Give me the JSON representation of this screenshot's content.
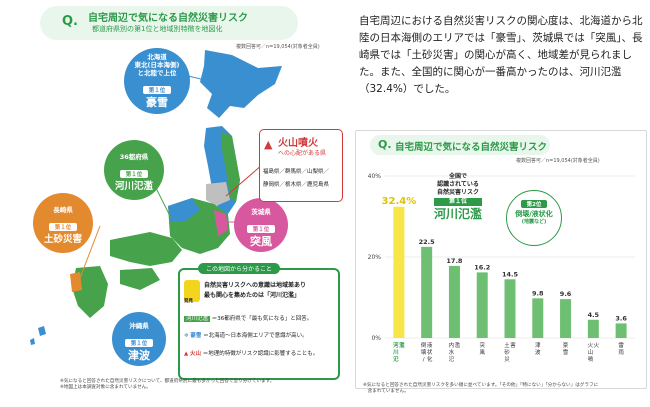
{
  "map": {
    "title": "自宅周辺で気になる自然災害リスク",
    "subtitle": "都道府県別の第1位と地域別特徴を地図化",
    "qmark": "Q.",
    "note": "複数回答可／n=19,054(対象者全員)",
    "rank_label": "第１位",
    "bubbles": [
      {
        "region1": "北海道",
        "region2": "東北(日本海側)",
        "region3": "と北陸で上位",
        "risk": "豪雪",
        "color": "#3a8fd0"
      },
      {
        "region1": "36都府県",
        "risk": "河川氾濫",
        "color": "#47a34b"
      },
      {
        "region1": "長崎県",
        "risk": "土砂災害",
        "color": "#e48a2e"
      },
      {
        "region1": "茨城県",
        "risk": "突風",
        "color": "#d8589f"
      },
      {
        "region1": "沖縄県",
        "risk": "津波",
        "color": "#3a8fd0"
      }
    ],
    "volcano": {
      "title": "火山噴火",
      "subtitle": "への心配がある県",
      "prefs1": "福島県／群馬県／山梨県／",
      "prefs2": "静岡県／栃木県／鹿児島県"
    },
    "legend": {
      "title": "この地図から分かること",
      "badge": "発見",
      "finding1": "自然災害リスクへの意識は地域差あり",
      "finding2": "最も関心を集めたのは「河川氾濫」",
      "item_river_label": "河川氾濫",
      "item_river": "＝36都府県で「最も気になる」と回答。",
      "item_snow_label": "豪雪",
      "item_snow": "＝北海道〜日本海側エリアで意識が高い。",
      "item_volcano_label": "火山",
      "item_volcano": "＝地理的特徴がリスク認識に影響することも。"
    },
    "footnote1": "※気になると回答された自然災害リスクについて、都道府県別に最も多かった回答で塗り分けています。",
    "footnote2": "※地図上は本調査対象に含まれていません。"
  },
  "description": "自宅周辺における自然災害リスクの関心度は、北海道から北陸の日本海側のエリアでは「豪雪」、茨城県では「突風」、長崎県では「土砂災害」の関心が高く、地域差が見られました。また、全国的に関心が一番高かったのは、河川氾濫（32.4%）でした。",
  "chart": {
    "qmark": "Q.",
    "title": "自宅周辺で気になる自然災害リスク",
    "note": "複数回答可／n=19,054(対象者全員)",
    "footnote1": "※気になると回答された自然災害リスクを多い順に並べています。「その他」「特にない」「分からない」はグラフに",
    "footnote2": "　含まれていません。",
    "callout1_line1": "全国で",
    "callout1_line2": "認識されている",
    "callout1_line3": "自然災害リスク",
    "callout1_rank": "第１位",
    "callout1_main": "河川氾濫",
    "callout2_rank": "第2位",
    "callout2_main": "倒壊/液状化",
    "callout2_sub": "(地震など)"
  },
  "chart_data": {
    "type": "bar",
    "categories": [
      "河川氾濫",
      "倒壊/液状化(地震など)",
      "内水氾濫",
      "突風",
      "土砂災害",
      "津波",
      "豪雪",
      "火山噴火",
      "雷雨"
    ],
    "values": [
      32.4,
      22.5,
      17.8,
      16.2,
      14.5,
      9.8,
      9.6,
      4.5,
      3.6
    ],
    "value_labels": [
      "32.4%",
      "22.5",
      "17.8",
      "16.2",
      "14.5",
      "9.8",
      "9.6",
      "4.5",
      "3.6"
    ],
    "ylim": [
      0,
      40
    ],
    "yticks": [
      "0%",
      "20%",
      "40%"
    ],
    "colors": {
      "highlight": "#f6e64a",
      "highlight_text": "#e0c300",
      "bars": "#6fbf73",
      "grid": "#dddddd"
    }
  }
}
